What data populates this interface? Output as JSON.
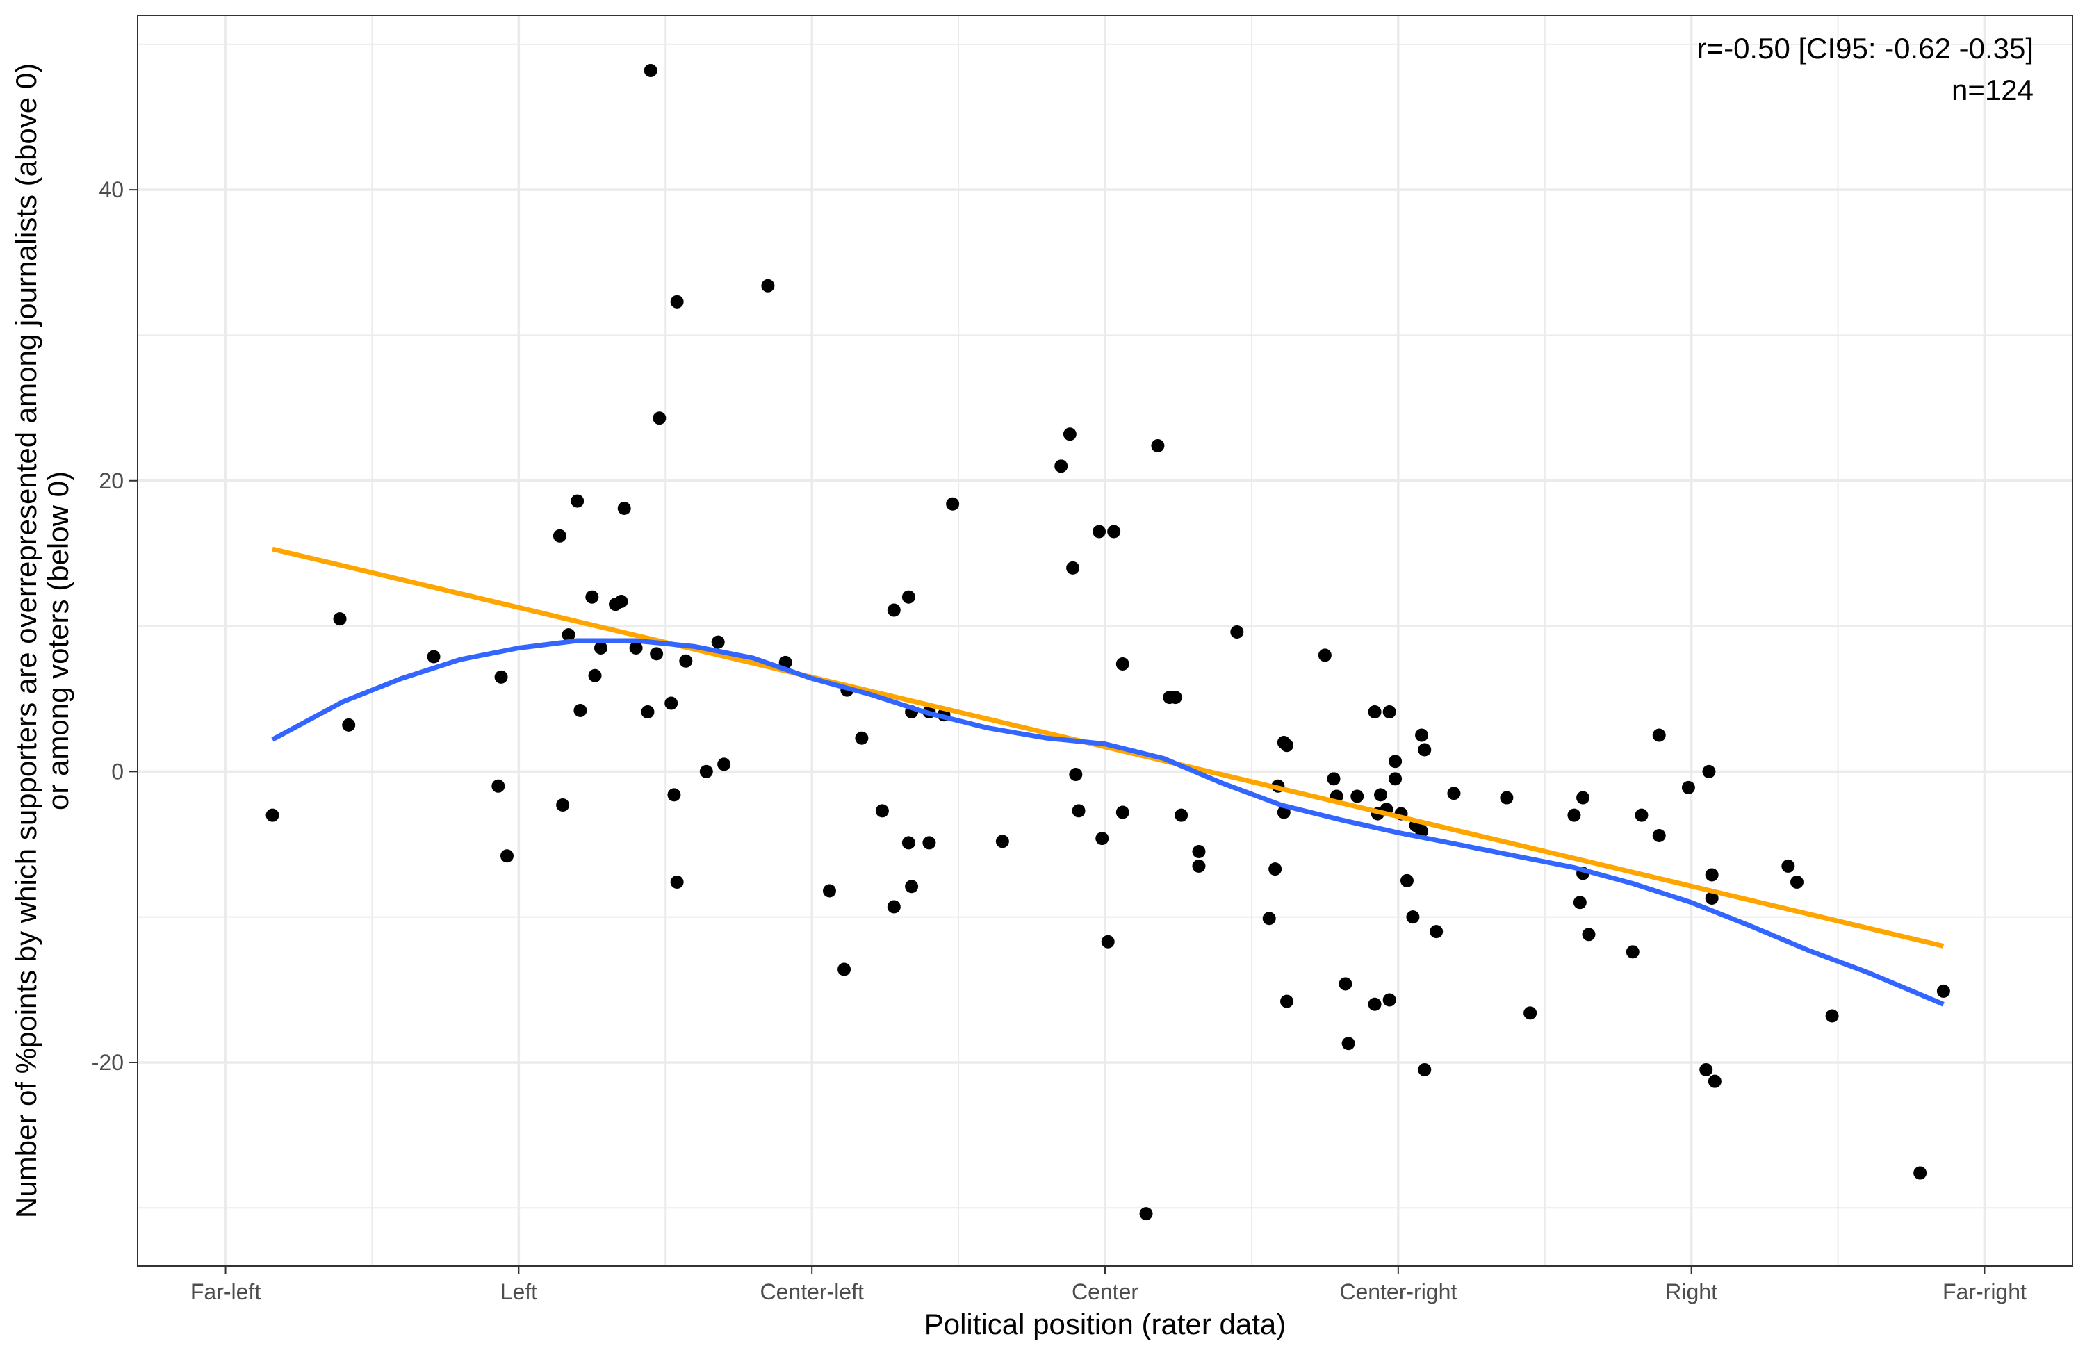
{
  "chart_data": {
    "type": "scatter",
    "title": "",
    "xlabel": "Political position (rater data)",
    "ylabel_lines": [
      "Number of %points by which supporters are overrepresented among journalists (above 0)",
      "or among voters (below 0)"
    ],
    "xlim": [
      0.7,
      7.3
    ],
    "ylim": [
      -34,
      52
    ],
    "x_ticks": [
      {
        "value": 1,
        "label": "Far-left"
      },
      {
        "value": 2,
        "label": "Left"
      },
      {
        "value": 3,
        "label": "Center-left"
      },
      {
        "value": 4,
        "label": "Center"
      },
      {
        "value": 5,
        "label": "Center-right"
      },
      {
        "value": 6,
        "label": "Right"
      },
      {
        "value": 7,
        "label": "Far-right"
      }
    ],
    "y_ticks": [
      {
        "value": -20,
        "label": "-20"
      },
      {
        "value": 0,
        "label": "0"
      },
      {
        "value": 20,
        "label": "20"
      },
      {
        "value": 40,
        "label": "40"
      }
    ],
    "grid": true,
    "annotations": [
      "r=-0.50 [CI95: -0.62 -0.35]",
      "n=124"
    ],
    "colors": {
      "points": "#000000",
      "linear": "#FFA500",
      "loess": "#3366FF",
      "grid": "#EBEBEB",
      "panel_border": "#333333"
    },
    "points": [
      [
        1.16,
        -3.0
      ],
      [
        1.39,
        10.5
      ],
      [
        1.42,
        3.2
      ],
      [
        1.71,
        7.9
      ],
      [
        1.93,
        -1.0
      ],
      [
        1.94,
        6.5
      ],
      [
        1.96,
        -5.8
      ],
      [
        2.14,
        16.2
      ],
      [
        2.15,
        -2.3
      ],
      [
        2.17,
        9.4
      ],
      [
        2.2,
        18.6
      ],
      [
        2.21,
        4.2
      ],
      [
        2.25,
        12.0
      ],
      [
        2.26,
        6.6
      ],
      [
        2.28,
        8.5
      ],
      [
        2.33,
        11.5
      ],
      [
        2.35,
        11.7
      ],
      [
        2.36,
        18.1
      ],
      [
        2.4,
        8.5
      ],
      [
        2.44,
        4.1
      ],
      [
        2.45,
        48.2
      ],
      [
        2.47,
        8.1
      ],
      [
        2.48,
        24.3
      ],
      [
        2.52,
        4.7
      ],
      [
        2.53,
        -1.6
      ],
      [
        2.54,
        -7.6
      ],
      [
        2.54,
        32.3
      ],
      [
        2.57,
        7.6
      ],
      [
        2.64,
        0.0
      ],
      [
        2.68,
        8.9
      ],
      [
        2.7,
        0.5
      ],
      [
        2.85,
        33.4
      ],
      [
        2.91,
        7.5
      ],
      [
        3.06,
        -8.2
      ],
      [
        3.11,
        -13.6
      ],
      [
        3.12,
        5.6
      ],
      [
        3.17,
        2.3
      ],
      [
        3.24,
        -2.7
      ],
      [
        3.28,
        11.1
      ],
      [
        3.28,
        -9.3
      ],
      [
        3.33,
        12.0
      ],
      [
        3.33,
        -4.9
      ],
      [
        3.34,
        4.1
      ],
      [
        3.34,
        -7.9
      ],
      [
        3.4,
        4.1
      ],
      [
        3.4,
        -4.9
      ],
      [
        3.45,
        3.9
      ],
      [
        3.48,
        18.4
      ],
      [
        3.65,
        -4.8
      ],
      [
        3.85,
        21.0
      ],
      [
        3.88,
        23.2
      ],
      [
        3.89,
        14.0
      ],
      [
        3.9,
        -0.2
      ],
      [
        3.91,
        -2.7
      ],
      [
        3.98,
        16.5
      ],
      [
        3.99,
        -4.6
      ],
      [
        4.01,
        -11.7
      ],
      [
        4.03,
        16.5
      ],
      [
        4.06,
        7.4
      ],
      [
        4.06,
        -2.8
      ],
      [
        4.14,
        -30.4
      ],
      [
        4.18,
        22.4
      ],
      [
        4.22,
        5.1
      ],
      [
        4.24,
        5.1
      ],
      [
        4.26,
        -3.0
      ],
      [
        4.32,
        -5.5
      ],
      [
        4.32,
        -6.5
      ],
      [
        4.45,
        9.6
      ],
      [
        4.56,
        -10.1
      ],
      [
        4.58,
        -6.7
      ],
      [
        4.59,
        -1.0
      ],
      [
        4.61,
        2.0
      ],
      [
        4.62,
        1.8
      ],
      [
        4.61,
        -2.8
      ],
      [
        4.62,
        -15.8
      ],
      [
        4.75,
        8.0
      ],
      [
        4.78,
        -0.5
      ],
      [
        4.79,
        -1.7
      ],
      [
        4.82,
        -14.6
      ],
      [
        4.83,
        -18.7
      ],
      [
        4.86,
        -1.7
      ],
      [
        4.92,
        4.1
      ],
      [
        4.92,
        -16.0
      ],
      [
        4.93,
        -2.9
      ],
      [
        4.94,
        -1.6
      ],
      [
        4.96,
        -2.6
      ],
      [
        4.97,
        -15.7
      ],
      [
        4.97,
        4.1
      ],
      [
        4.99,
        0.7
      ],
      [
        4.99,
        -0.5
      ],
      [
        5.01,
        -2.9
      ],
      [
        5.03,
        -7.5
      ],
      [
        5.05,
        -10.0
      ],
      [
        5.06,
        -3.7
      ],
      [
        5.08,
        -4.1
      ],
      [
        5.08,
        2.5
      ],
      [
        5.09,
        1.5
      ],
      [
        5.09,
        -20.5
      ],
      [
        5.13,
        -11.0
      ],
      [
        5.19,
        -1.5
      ],
      [
        5.37,
        -1.8
      ],
      [
        5.45,
        -16.6
      ],
      [
        5.6,
        -3.0
      ],
      [
        5.62,
        -9.0
      ],
      [
        5.63,
        -7.0
      ],
      [
        5.63,
        -1.8
      ],
      [
        5.65,
        -11.2
      ],
      [
        5.8,
        -12.4
      ],
      [
        5.83,
        -3.0
      ],
      [
        5.89,
        -4.4
      ],
      [
        5.89,
        2.5
      ],
      [
        5.99,
        -1.1
      ],
      [
        6.05,
        -20.5
      ],
      [
        6.06,
        0.0
      ],
      [
        6.07,
        -7.1
      ],
      [
        6.07,
        -8.7
      ],
      [
        6.08,
        -21.3
      ],
      [
        6.33,
        -6.5
      ],
      [
        6.36,
        -7.6
      ],
      [
        6.48,
        -16.8
      ],
      [
        6.78,
        -27.6
      ],
      [
        6.86,
        -15.1
      ]
    ],
    "linear_fit": {
      "x": [
        1.16,
        6.86
      ],
      "y": [
        15.3,
        -12.0
      ]
    },
    "loess_fit": {
      "x": [
        1.16,
        1.4,
        1.6,
        1.8,
        2.0,
        2.2,
        2.4,
        2.6,
        2.8,
        3.0,
        3.2,
        3.4,
        3.6,
        3.8,
        4.0,
        4.2,
        4.4,
        4.6,
        4.8,
        5.0,
        5.2,
        5.4,
        5.6,
        5.8,
        6.0,
        6.2,
        6.4,
        6.6,
        6.86
      ],
      "y": [
        2.2,
        4.8,
        6.4,
        7.7,
        8.5,
        9.0,
        9.0,
        8.6,
        7.8,
        6.4,
        5.3,
        4.0,
        3.0,
        2.3,
        1.9,
        0.9,
        -0.8,
        -2.3,
        -3.3,
        -4.2,
        -5.0,
        -5.8,
        -6.6,
        -7.7,
        -9.0,
        -10.6,
        -12.3,
        -13.8,
        -16.0
      ]
    }
  }
}
